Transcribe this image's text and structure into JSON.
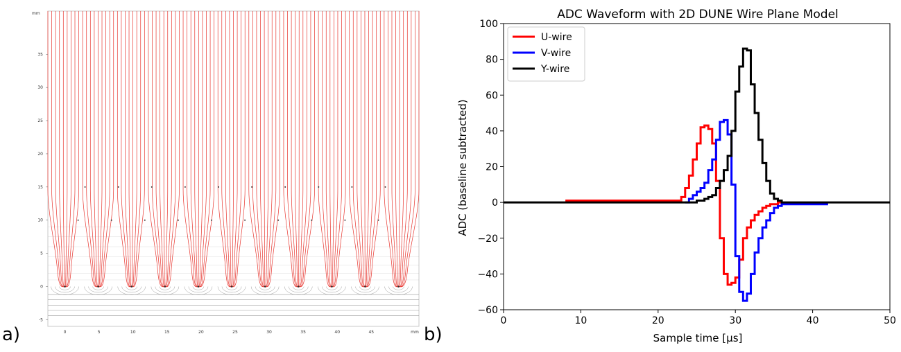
{
  "panel_labels": {
    "a": "a)",
    "b": "b)"
  },
  "chart_data": [
    {
      "type": "line",
      "panel": "a",
      "title": "",
      "unit_label_x": "mm",
      "unit_label_y": "mm",
      "x_ticks": [
        "0",
        "5",
        "10",
        "15",
        "20",
        "25",
        "30",
        "35",
        "40",
        "45",
        "mm"
      ],
      "y_ticks": [
        "-5",
        "0",
        "5",
        "10",
        "15",
        "20",
        "25",
        "30",
        "35"
      ],
      "xlim": [
        -2.5,
        52
      ],
      "ylim": [
        -6,
        41.5
      ],
      "wire_x": [
        0,
        4.9,
        9.8,
        14.7,
        19.6,
        24.5,
        29.4,
        34.3,
        39.2,
        44.1,
        49.0
      ],
      "wire_y": 0,
      "upper_wire_y": [
        10,
        15
      ],
      "field_line_color": "#e8352e",
      "equipotential_color": "#9a9a9a"
    },
    {
      "type": "line",
      "panel": "b",
      "title": "ADC Waveform with 2D DUNE Wire Plane Model",
      "xlabel": "Sample time [μs]",
      "ylabel": "ADC (baseline subtracted)",
      "xlim": [
        0,
        50
      ],
      "ylim": [
        -60,
        100
      ],
      "x_ticks": [
        "0",
        "10",
        "20",
        "30",
        "40",
        "50"
      ],
      "y_ticks": [
        "−60",
        "−40",
        "−20",
        "0",
        "20",
        "40",
        "60",
        "80",
        "100"
      ],
      "legend_position": "top-left",
      "step": 0.5,
      "series": [
        {
          "name": "U-wire",
          "color": "#ff0000",
          "x": [
            8.0,
            22.5,
            23.0,
            23.5,
            24.0,
            24.5,
            25.0,
            25.5,
            26.0,
            26.5,
            27.0,
            27.5,
            28.0,
            28.5,
            29.0,
            29.5,
            30.0,
            30.5,
            31.0,
            31.5,
            32.0,
            32.5,
            33.0,
            33.5,
            34.0,
            34.5,
            35.0,
            35.5,
            36.0
          ],
          "y": [
            1,
            1,
            3,
            8,
            15,
            24,
            33,
            42,
            43,
            41,
            33,
            12,
            -20,
            -40,
            -46,
            -45,
            -42,
            -32,
            -20,
            -14,
            -10,
            -7,
            -5,
            -3,
            -2,
            -1,
            -1,
            0,
            0
          ]
        },
        {
          "name": "V-wire",
          "color": "#0000ff",
          "x": [
            23.5,
            24.0,
            24.5,
            25.0,
            25.5,
            26.0,
            26.5,
            27.0,
            27.5,
            28.0,
            28.5,
            29.0,
            29.5,
            30.0,
            30.5,
            31.0,
            31.5,
            32.0,
            32.5,
            33.0,
            33.5,
            34.0,
            34.5,
            35.0,
            35.5,
            36.0,
            36.5,
            42.0
          ],
          "y": [
            0,
            2,
            4,
            6,
            8,
            11,
            18,
            24,
            35,
            45,
            46,
            38,
            10,
            -30,
            -50,
            -55,
            -51,
            -40,
            -28,
            -20,
            -14,
            -10,
            -6,
            -3,
            -2,
            -1,
            -1,
            -1
          ]
        },
        {
          "name": "Y-wire",
          "color": "#000000",
          "x": [
            0,
            24.5,
            25.0,
            25.5,
            26.0,
            26.5,
            27.0,
            27.5,
            28.0,
            28.5,
            29.0,
            29.5,
            30.0,
            30.5,
            31.0,
            31.5,
            32.0,
            32.5,
            33.0,
            33.5,
            34.0,
            34.5,
            35.0,
            35.5,
            36.0,
            36.5,
            50.0
          ],
          "y": [
            0,
            0,
            1,
            1,
            2,
            3,
            4,
            8,
            12,
            18,
            26,
            40,
            62,
            76,
            86,
            85,
            66,
            50,
            35,
            22,
            12,
            5,
            2,
            1,
            0,
            0,
            0
          ]
        }
      ]
    }
  ]
}
